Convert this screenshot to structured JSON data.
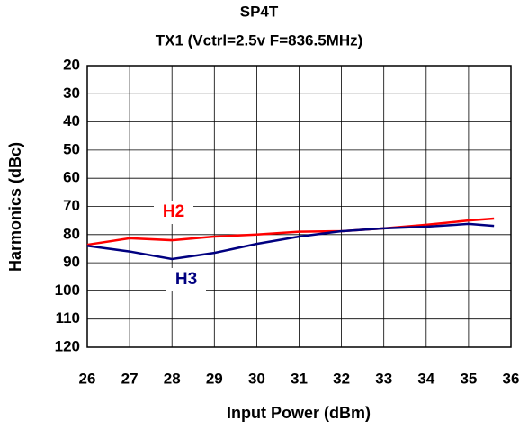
{
  "chart_data": {
    "type": "line",
    "title": "SP4T",
    "subtitle": "TX1 (Vctrl=2.5v F=836.5MHz)",
    "x_label": "Input Power (dBm)",
    "y_label": "Harmonics (dBc)",
    "x": [
      26,
      27,
      28,
      29,
      30,
      31,
      32,
      33,
      34,
      35,
      35.6
    ],
    "series": [
      {
        "name": "H2",
        "color": "#ff0000",
        "values": [
          83.6,
          81.3,
          82,
          80.7,
          80,
          79,
          78.8,
          77.8,
          76.5,
          75,
          74.3
        ]
      },
      {
        "name": "H3",
        "color": "#000080",
        "values": [
          84,
          86,
          88.7,
          86.5,
          83.3,
          80.7,
          78.8,
          77.8,
          77.2,
          76.2,
          76.9
        ]
      }
    ],
    "xlim": [
      26,
      36
    ],
    "xticks": [
      26,
      27,
      28,
      29,
      30,
      31,
      32,
      33,
      34,
      35,
      36
    ],
    "ylim": [
      20,
      120
    ],
    "yticks": [
      20,
      30,
      40,
      50,
      60,
      70,
      80,
      90,
      100,
      110,
      120
    ],
    "y_inverted": true,
    "grid": true
  }
}
